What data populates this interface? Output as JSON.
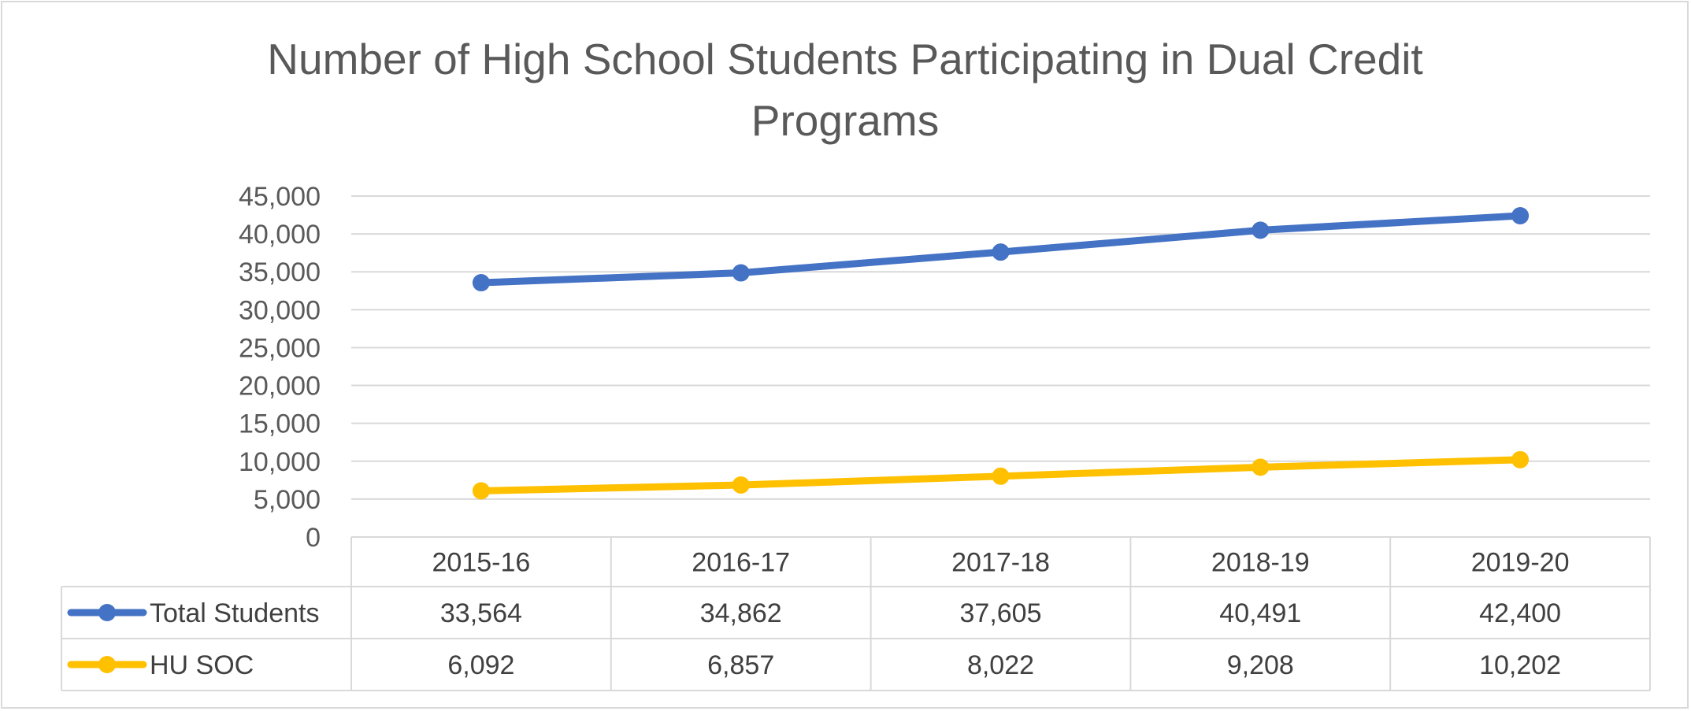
{
  "chart_data": {
    "type": "line",
    "title": "Number of High School Students Participating in Dual Credit Programs",
    "title_lines": [
      "Number of High School Students Participating in Dual Credit",
      "Programs"
    ],
    "categories": [
      "2015-16",
      "2016-17",
      "2017-18",
      "2018-19",
      "2019-20"
    ],
    "series": [
      {
        "name": "Total Students",
        "color": "#4472C4",
        "values": [
          33564,
          34862,
          37605,
          40491,
          42400
        ],
        "value_labels": [
          "33,564",
          "34,862",
          "37,605",
          "40,491",
          "42,400"
        ]
      },
      {
        "name": "HU SOC",
        "color": "#FFC000",
        "values": [
          6092,
          6857,
          8022,
          9208,
          10202
        ],
        "value_labels": [
          "6,092",
          "6,857",
          "8,022",
          "9,208",
          "10,202"
        ]
      }
    ],
    "ylim": [
      0,
      45000
    ],
    "yticks": [
      0,
      5000,
      10000,
      15000,
      20000,
      25000,
      30000,
      35000,
      40000,
      45000
    ],
    "ytick_labels": [
      "0",
      "5,000",
      "10,000",
      "15,000",
      "20,000",
      "25,000",
      "30,000",
      "35,000",
      "40,000",
      "45,000"
    ],
    "grid": true,
    "legend": "data-table",
    "xlabel": "",
    "ylabel": ""
  }
}
